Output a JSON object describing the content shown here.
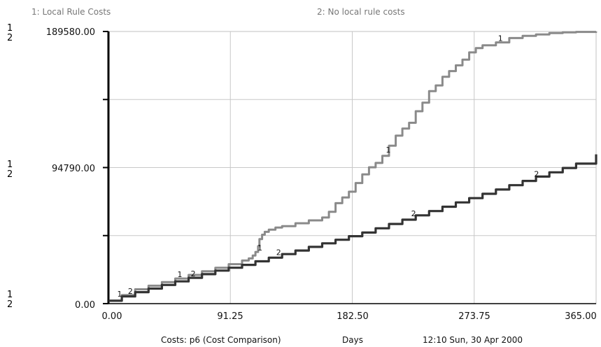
{
  "chart_data": {
    "type": "line",
    "legend": [
      "1: Local Rule Costs",
      "2: No local rule costs"
    ],
    "y_scale_markers": [
      {
        "top": "1",
        "bottom": "2"
      },
      {
        "top": "1",
        "bottom": "2"
      },
      {
        "top": "1",
        "bottom": "2"
      }
    ],
    "y_tick_labels": [
      "189580.00",
      "94790.00",
      "0.00"
    ],
    "x_tick_labels": [
      "0.00",
      "91.25",
      "182.50",
      "273.75",
      "365.00"
    ],
    "xlim": [
      0,
      365
    ],
    "ylim": [
      0,
      189580
    ],
    "grid": true,
    "footer": {
      "graph_label": "Costs: p6 (Cost Comparison)",
      "x_unit": "Days",
      "timestamp": "12:10  Sun, 30 Apr 2000"
    },
    "series": [
      {
        "label": "1",
        "color": "#8a8a8a",
        "x": [
          0,
          10,
          20,
          30,
          40,
          50,
          60,
          70,
          80,
          90,
          100,
          105,
          108,
          110,
          112,
          113,
          115,
          117,
          120,
          125,
          130,
          140,
          150,
          160,
          165,
          170,
          175,
          180,
          185,
          190,
          195,
          200,
          205,
          210,
          215,
          220,
          225,
          230,
          235,
          240,
          245,
          250,
          255,
          260,
          265,
          270,
          275,
          280,
          290,
          300,
          310,
          320,
          330,
          340,
          350,
          365
        ],
        "y": [
          2000,
          6000,
          10000,
          12500,
          15000,
          17500,
          20000,
          22500,
          25000,
          27500,
          30000,
          31500,
          33500,
          36000,
          40000,
          45000,
          48000,
          50000,
          51500,
          53000,
          54000,
          56000,
          58000,
          60000,
          64000,
          70000,
          74000,
          78000,
          84000,
          90000,
          95000,
          98000,
          103000,
          110000,
          117000,
          122000,
          126000,
          134000,
          140000,
          148000,
          152000,
          158000,
          162000,
          166000,
          170000,
          175000,
          178000,
          180000,
          182000,
          185000,
          186500,
          187500,
          188500,
          189000,
          189300,
          189580
        ]
      },
      {
        "label": "2",
        "color": "#333333",
        "x": [
          0,
          10,
          20,
          30,
          40,
          50,
          60,
          70,
          80,
          90,
          100,
          110,
          120,
          130,
          140,
          150,
          160,
          170,
          180,
          190,
          200,
          210,
          220,
          230,
          240,
          250,
          260,
          270,
          280,
          290,
          300,
          310,
          320,
          330,
          340,
          350,
          365
        ],
        "y": [
          2000,
          5000,
          8000,
          10500,
          13000,
          15500,
          18000,
          20500,
          23000,
          25000,
          27000,
          29500,
          32000,
          34500,
          37000,
          39500,
          42000,
          44500,
          47000,
          49500,
          52500,
          55500,
          58500,
          61500,
          64500,
          67500,
          70500,
          73500,
          76500,
          79500,
          82500,
          85500,
          88500,
          91500,
          94500,
          97500,
          104000
        ]
      }
    ]
  }
}
